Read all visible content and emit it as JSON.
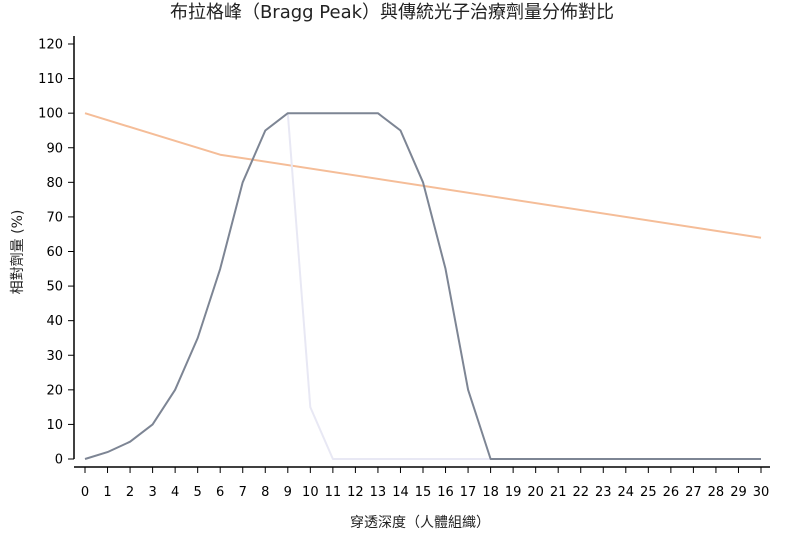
{
  "chart_data": {
    "type": "line",
    "title": "布拉格峰（Bragg Peak）與傳統光子治療劑量分佈對比",
    "xlabel": "穿透深度（人體組織）",
    "ylabel": "相對劑量 (%)",
    "xlim": [
      0,
      30
    ],
    "ylim": [
      0,
      120
    ],
    "x_ticks": [
      0,
      1,
      2,
      3,
      4,
      5,
      6,
      7,
      8,
      9,
      10,
      11,
      12,
      13,
      14,
      15,
      16,
      17,
      18,
      19,
      20,
      21,
      22,
      23,
      24,
      25,
      26,
      27,
      28,
      29,
      30
    ],
    "y_ticks": [
      0,
      10,
      20,
      30,
      40,
      50,
      60,
      70,
      80,
      90,
      100,
      110,
      120
    ],
    "grid": false,
    "legend": "none",
    "series": [
      {
        "color": "#f5bd98",
        "points": [
          [
            0,
            100
          ],
          [
            6,
            88
          ],
          [
            30,
            64
          ]
        ]
      },
      {
        "color": "#e8e8f4",
        "points": [
          [
            9,
            100
          ],
          [
            10,
            15
          ],
          [
            11,
            0
          ],
          [
            30,
            0
          ]
        ]
      },
      {
        "color": "#7d8594",
        "points": [
          [
            0,
            0
          ],
          [
            1,
            2
          ],
          [
            2,
            5
          ],
          [
            3,
            10
          ],
          [
            4,
            20
          ],
          [
            5,
            35
          ],
          [
            6,
            55
          ],
          [
            7,
            80
          ],
          [
            8,
            95
          ],
          [
            9,
            100
          ],
          [
            10,
            100
          ],
          [
            11,
            100
          ],
          [
            12,
            100
          ],
          [
            13,
            100
          ],
          [
            14,
            95
          ],
          [
            15,
            80
          ],
          [
            16,
            55
          ],
          [
            17,
            20
          ],
          [
            18,
            0
          ],
          [
            30,
            0
          ]
        ]
      }
    ]
  }
}
